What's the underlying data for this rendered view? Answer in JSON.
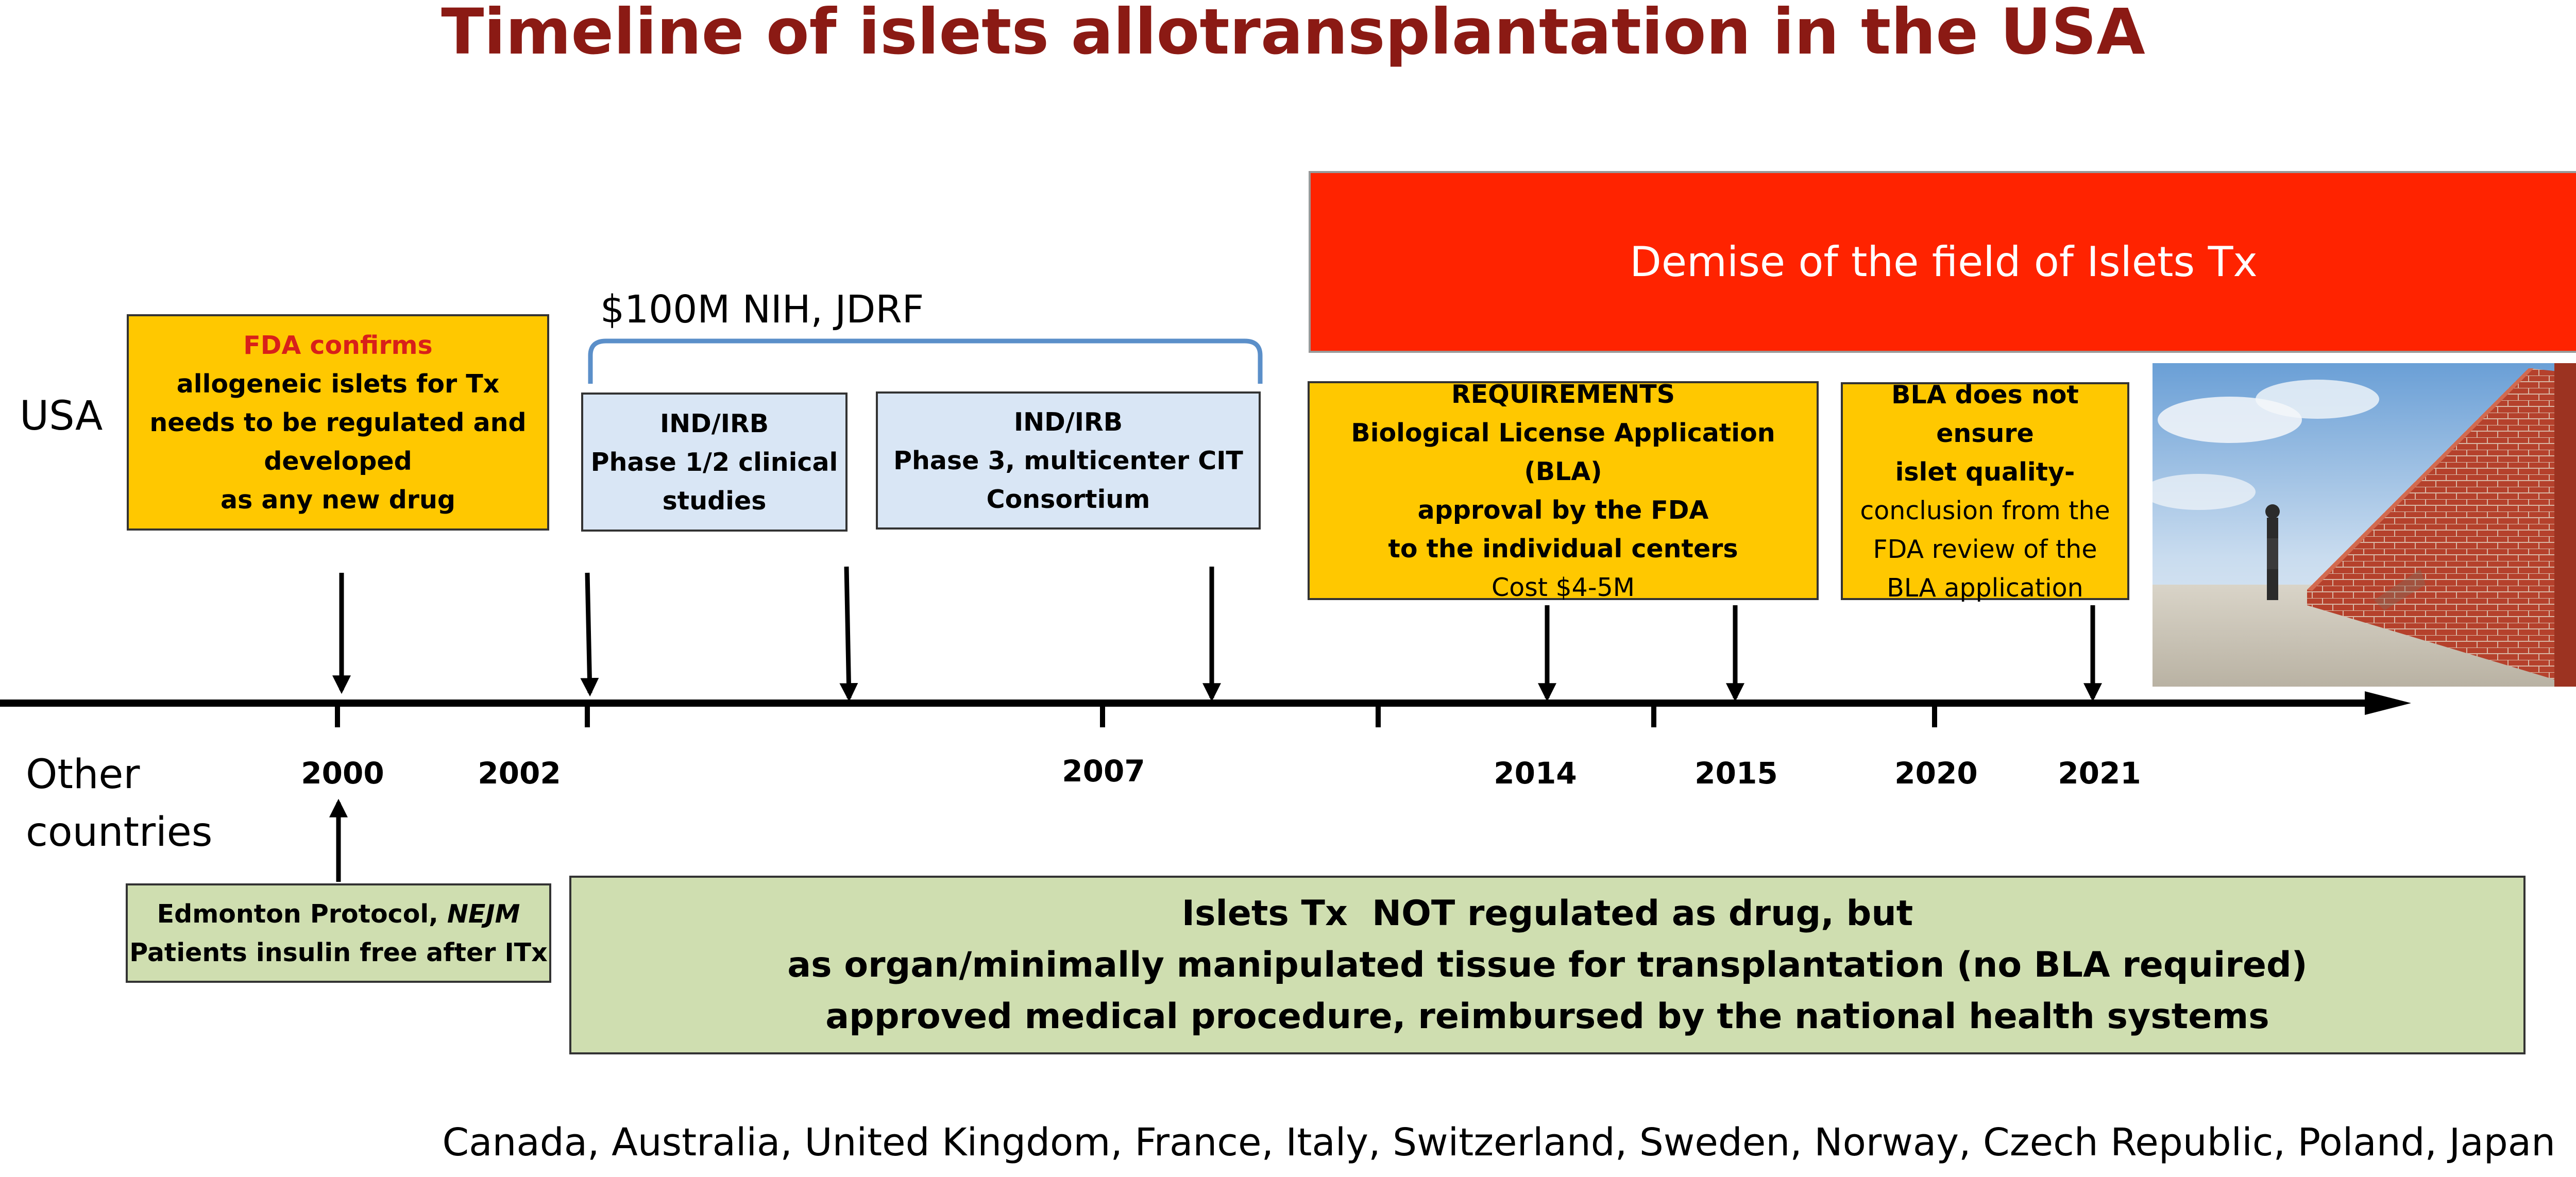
{
  "title": "Timeline of islets allotransplantation in the USA",
  "rows": {
    "usa": "USA",
    "other_line1": "Other",
    "other_line2": "countries"
  },
  "axis": {
    "years": [
      "2000",
      "2002",
      "2007",
      "2014",
      "2015",
      "2020",
      "2021"
    ]
  },
  "funding_label": "$100M NIH, JDRF",
  "banner": "Demise of the field of Islets Tx",
  "boxes": {
    "fda": {
      "heading": "FDA confirms",
      "line1": "allogeneic islets for Tx",
      "line2": "needs to be regulated and",
      "line3": "developed",
      "line4": "as any new drug"
    },
    "ind1": {
      "line1": "IND/IRB",
      "line2": "Phase 1/2 clinical",
      "line3": "studies"
    },
    "ind2": {
      "line1": "IND/IRB",
      "line2": "Phase 3, multicenter CIT",
      "line3": "Consortium"
    },
    "req": {
      "line1": "REQUIREMENTS",
      "line2": "Biological License Application (BLA)",
      "line3": "approval by the FDA",
      "line4": "to the individual centers",
      "line5": "Cost $4-5M"
    },
    "bla": {
      "line1": "BLA does not ensure",
      "line2": "islet quality-",
      "line3": "conclusion from the",
      "line4": "FDA review of the",
      "line5": "BLA application"
    },
    "edmonton": {
      "prefix": "Edmonton Protocol, ",
      "journal": "NEJM",
      "line2": "Patients insulin free after ITx"
    },
    "other": {
      "line1": "Islets Tx  NOT regulated as drug, but",
      "line2": "as organ/minimally manipulated tissue for transplantation (no BLA required)",
      "line3": "approved medical procedure, reimbursed by the national health systems"
    }
  },
  "countries": "Canada, Australia, United Kingdom, France, Italy, Switzerland, Sweden, Norway, Czech Republic, Poland, Japan",
  "colors": {
    "title": "#8b1a14",
    "yellow": "#ffc800",
    "blue": "#d9e6f5",
    "green": "#cfdeb0",
    "red": "#ff2300",
    "brace": "#5b8fc9",
    "highlight": "#d8201a"
  },
  "image": {
    "subject": "man-facing-brick-wall"
  }
}
